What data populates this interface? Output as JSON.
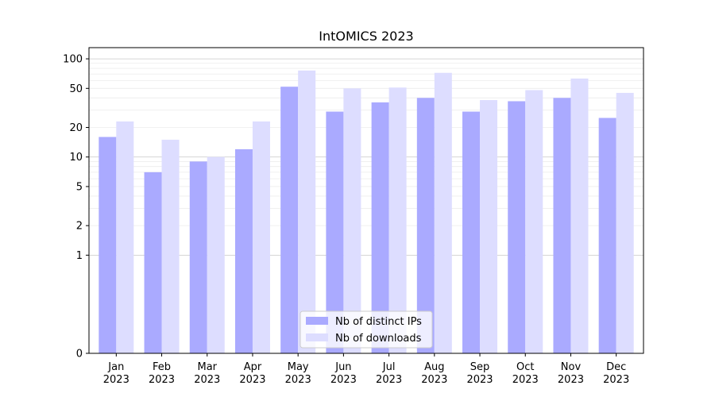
{
  "chart_data": {
    "type": "bar",
    "title": "IntOMICS 2023",
    "xlabel": "",
    "ylabel": "",
    "y_scale": "symlog",
    "ylim": [
      0,
      130
    ],
    "yticks": [
      {
        "value": 0,
        "label": "0"
      },
      {
        "value": 1,
        "label": "1"
      },
      {
        "value": 2,
        "label": "2"
      },
      {
        "value": 5,
        "label": "5"
      },
      {
        "value": 10,
        "label": "10"
      },
      {
        "value": 20,
        "label": "20"
      },
      {
        "value": 50,
        "label": "50"
      },
      {
        "value": 100,
        "label": "100"
      }
    ],
    "major_grid": [
      1,
      10,
      100
    ],
    "minor_grid": [
      2,
      3,
      4,
      5,
      6,
      7,
      8,
      9,
      20,
      30,
      40,
      50,
      60,
      70,
      80,
      90
    ],
    "grid": true,
    "categories": [
      {
        "month": "Jan",
        "year": "2023"
      },
      {
        "month": "Feb",
        "year": "2023"
      },
      {
        "month": "Mar",
        "year": "2023"
      },
      {
        "month": "Apr",
        "year": "2023"
      },
      {
        "month": "May",
        "year": "2023"
      },
      {
        "month": "Jun",
        "year": "2023"
      },
      {
        "month": "Jul",
        "year": "2023"
      },
      {
        "month": "Aug",
        "year": "2023"
      },
      {
        "month": "Sep",
        "year": "2023"
      },
      {
        "month": "Oct",
        "year": "2023"
      },
      {
        "month": "Nov",
        "year": "2023"
      },
      {
        "month": "Dec",
        "year": "2023"
      }
    ],
    "series": [
      {
        "name": "Nb of distinct IPs",
        "color": "#aaaaff",
        "values": [
          16,
          7,
          9,
          12,
          52,
          29,
          36,
          40,
          29,
          37,
          40,
          25
        ]
      },
      {
        "name": "Nb of downloads",
        "color": "#ddddff",
        "values": [
          23,
          15,
          10,
          23,
          76,
          50,
          51,
          72,
          38,
          48,
          63,
          45
        ]
      }
    ],
    "legend_position": "lower-center"
  }
}
